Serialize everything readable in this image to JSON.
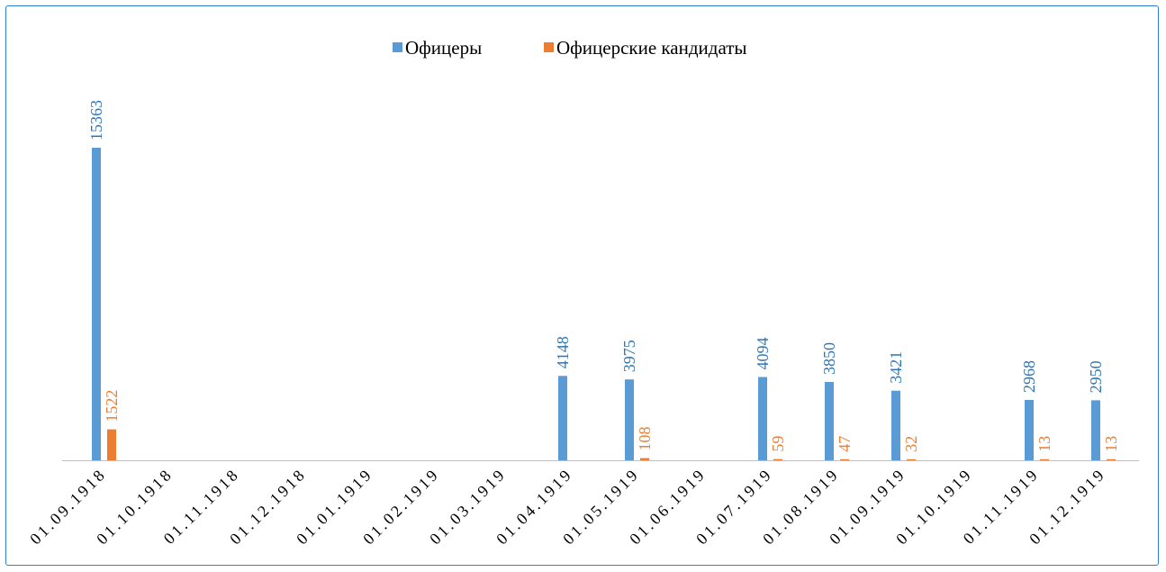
{
  "chart_data": {
    "type": "bar",
    "categories": [
      "01.09.1918",
      "01.10.1918",
      "01.11.1918",
      "01.12.1918",
      "01.01.1919",
      "01.02.1919",
      "01.03.1919",
      "01.04.1919",
      "01.05.1919",
      "01.06.1919",
      "01.07.1919",
      "01.08.1919",
      "01.09.1919",
      "01.10.1919",
      "01.11.1919",
      "01.12.1919"
    ],
    "series": [
      {
        "name": "Офицеры",
        "color": "#5b9bd5",
        "label_color": "#2e75b6",
        "values": [
          15363,
          null,
          null,
          null,
          null,
          null,
          null,
          4148,
          3975,
          null,
          4094,
          3850,
          3421,
          null,
          2968,
          2950
        ]
      },
      {
        "name": "Офицерские кандидаты",
        "color": "#ed7d31",
        "label_color": "#ed7d31",
        "values": [
          1522,
          null,
          null,
          null,
          null,
          null,
          null,
          null,
          108,
          null,
          59,
          47,
          32,
          null,
          13,
          13
        ]
      }
    ],
    "ylim": [
      0,
      15363
    ],
    "legend_position": "top",
    "grid": false,
    "title": "",
    "xlabel": "",
    "ylabel": ""
  }
}
